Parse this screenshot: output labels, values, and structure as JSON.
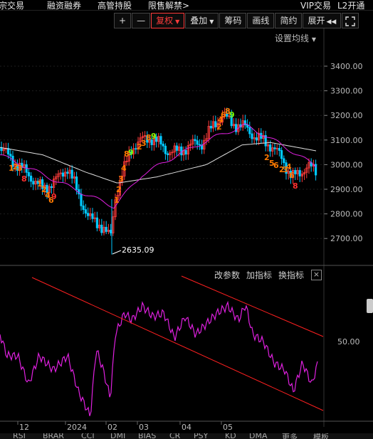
{
  "top_menu": [
    "大宗交易",
    "融资融券",
    "高管持股",
    "限售解禁>",
    "VIP交易",
    "L2开通"
  ],
  "toolbar": {
    "plus": "+",
    "minus": "—",
    "fuquan": "复权",
    "diejia": "叠加",
    "choumа": "筹码",
    "huaxian": "画线",
    "jianyue": "简约",
    "zhankai": "展开"
  },
  "ma_setting": "设置均线",
  "price_axis": [
    "3400.00",
    "3300.00",
    "3200.00",
    "3100.00",
    "3000.00",
    "2900.00",
    "2800.00",
    "2700.00"
  ],
  "low_label": "2635.09",
  "indicator_tools": [
    "改参数",
    "加指标",
    "换指标"
  ],
  "indicator_close": "×",
  "indicator_axis": "50.00",
  "date_axis": [
    "12",
    "2024",
    "02",
    "03",
    "04",
    "05"
  ],
  "bottom_tabs": [
    "RSI",
    "BRAR",
    "CCI",
    "DMI",
    "BIAS",
    "CR",
    "PSY",
    "KD",
    "DMA",
    "更多",
    "模板"
  ],
  "td_marks": [
    "1",
    "2",
    "3",
    "4",
    "5",
    "6",
    "7",
    "8",
    "9"
  ],
  "colors": {
    "up": "#ff3b3b",
    "down": "#00c8ff",
    "ma1": "#e0e0e0",
    "ma2": "#e020e0",
    "rsi": "#e020e0",
    "channel": "#ff2020",
    "td_up": "#ff7a00",
    "td_green": "#7CFC00"
  }
}
